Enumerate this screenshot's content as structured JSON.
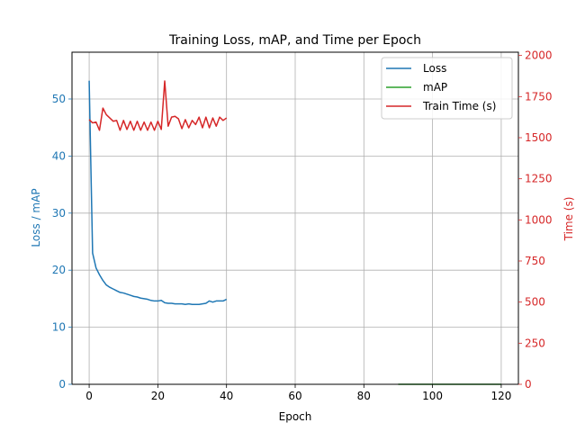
{
  "chart_data": {
    "type": "line",
    "title": "Training Loss, mAP, and Time per Epoch",
    "xlabel": "Epoch",
    "ylabel_left": "Loss / mAP",
    "ylabel_right": "Time (s)",
    "xlim": [
      -5,
      125
    ],
    "ylim_left": [
      0,
      58.2
    ],
    "ylim_right": [
      0,
      2020
    ],
    "x_ticks": [
      0,
      20,
      40,
      60,
      80,
      100,
      120
    ],
    "y_ticks_left": [
      0,
      10,
      20,
      30,
      40,
      50
    ],
    "y_ticks_right": [
      0,
      250,
      500,
      750,
      1000,
      1250,
      1500,
      1750,
      2000
    ],
    "grid": true,
    "legend_position": "top-right",
    "colors": {
      "left_axis": "#1f77b4",
      "right_axis": "#d62728"
    },
    "series": [
      {
        "name": "Loss",
        "axis": "left",
        "color": "#1f77b4",
        "x": [
          0,
          1,
          2,
          3,
          4,
          5,
          6,
          7,
          8,
          9,
          10,
          11,
          12,
          13,
          14,
          15,
          16,
          17,
          18,
          19,
          20,
          21,
          22,
          23,
          24,
          25,
          26,
          27,
          28,
          29,
          30,
          31,
          32,
          33,
          34,
          35,
          36,
          37,
          38,
          39,
          40
        ],
        "y": [
          53.2,
          23.0,
          20.4,
          19.2,
          18.2,
          17.4,
          17.0,
          16.7,
          16.4,
          16.1,
          16.0,
          15.8,
          15.6,
          15.4,
          15.3,
          15.1,
          15.0,
          14.9,
          14.7,
          14.6,
          14.6,
          14.7,
          14.3,
          14.2,
          14.2,
          14.1,
          14.1,
          14.1,
          14.0,
          14.1,
          14.0,
          14.0,
          14.0,
          14.1,
          14.2,
          14.6,
          14.4,
          14.6,
          14.6,
          14.6,
          14.9
        ]
      },
      {
        "name": "mAP",
        "axis": "left",
        "color": "#2ca02c",
        "x": [
          90,
          95,
          100,
          105,
          110,
          115,
          120
        ],
        "y": [
          0,
          0,
          0,
          0,
          0,
          0,
          0
        ]
      },
      {
        "name": "Train Time (s)",
        "axis": "right",
        "color": "#d62728",
        "x": [
          0,
          1,
          2,
          3,
          4,
          5,
          6,
          7,
          8,
          9,
          10,
          11,
          12,
          13,
          14,
          15,
          16,
          17,
          18,
          19,
          20,
          21,
          22,
          23,
          24,
          25,
          26,
          27,
          28,
          29,
          30,
          31,
          32,
          33,
          34,
          35,
          36,
          37,
          38,
          39,
          40
        ],
        "y": [
          1610,
          1590,
          1595,
          1545,
          1680,
          1640,
          1620,
          1600,
          1605,
          1545,
          1605,
          1550,
          1600,
          1545,
          1600,
          1545,
          1595,
          1545,
          1595,
          1545,
          1600,
          1550,
          1845,
          1570,
          1625,
          1630,
          1615,
          1555,
          1610,
          1560,
          1605,
          1580,
          1625,
          1560,
          1625,
          1560,
          1620,
          1570,
          1625,
          1605,
          1620
        ]
      }
    ]
  }
}
